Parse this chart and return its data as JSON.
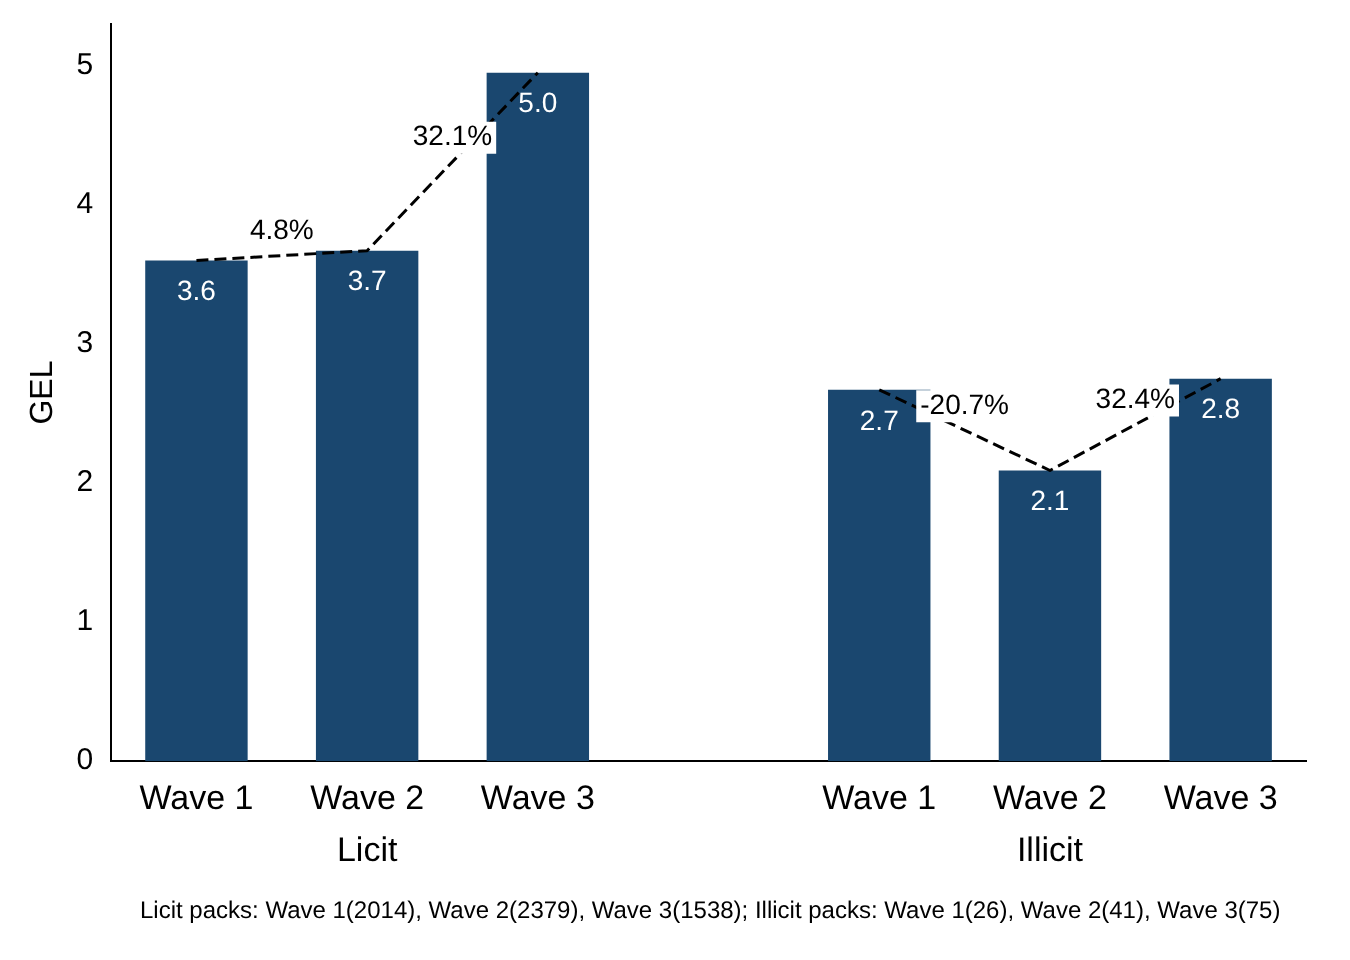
{
  "chart_data": {
    "type": "bar",
    "ylabel": "GEL",
    "categories": [
      "Wave 1",
      "Wave 2",
      "Wave 3",
      null,
      "Wave 1",
      "Wave 2",
      "Wave 3"
    ],
    "series": [
      {
        "color": "#1a476f",
        "values": [
          3.6,
          3.67,
          4.95,
          null,
          2.67,
          2.09,
          2.75
        ],
        "value_labels": [
          "3.6",
          "3.7",
          "5.0",
          null,
          "2.7",
          "2.1",
          "2.8"
        ]
      },
      {
        "type": "line",
        "color": "#000000",
        "line_style": "dashed",
        "marker": "none",
        "values": [
          3.6,
          3.67,
          4.95,
          null,
          null,
          null,
          null
        ]
      },
      {
        "type": "line",
        "color": "#000000",
        "line_style": "dashed",
        "marker": "none",
        "values": [
          null,
          null,
          null,
          null,
          2.67,
          2.09,
          2.75
        ]
      }
    ],
    "ylim": [
      0,
      5.3
    ],
    "yticks": [
      0,
      1,
      2,
      3,
      4,
      5
    ],
    "grid": false,
    "legend": false,
    "annotations": [
      "Licit",
      "Illicit",
      "4.8%",
      "32.1%",
      "-20.7%",
      "32.4%",
      "Licit packs: Wave 1(2014), Wave 2(2379), Wave 3(1538); Illicit packs: Wave 1(26), Wave 2(41), Wave 3(75)"
    ]
  }
}
